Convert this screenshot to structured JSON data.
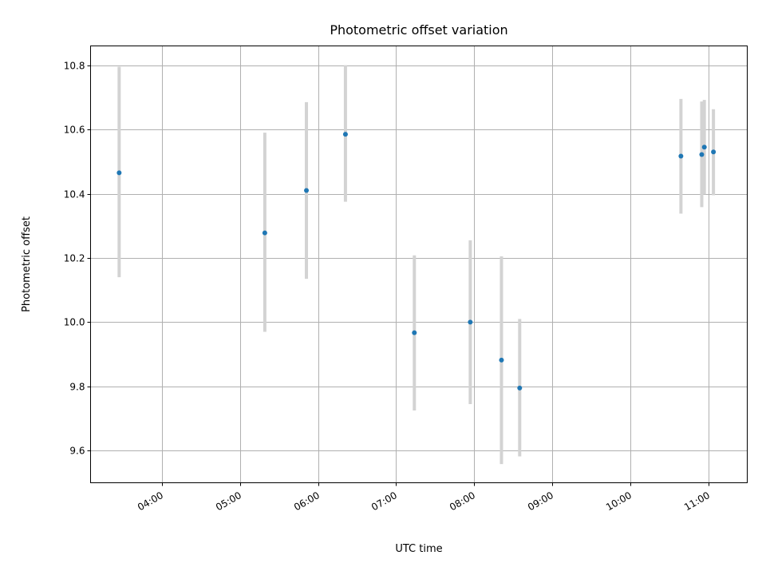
{
  "chart_data": {
    "type": "scatter",
    "title": "Photometric offset variation",
    "xlabel": "UTC time",
    "ylabel": "Photometric offset",
    "x_axis": {
      "scale": "time",
      "range": [
        "03:05",
        "11:30"
      ],
      "ticks": [
        "04:00",
        "05:00",
        "06:00",
        "07:00",
        "08:00",
        "09:00",
        "10:00",
        "11:00"
      ]
    },
    "y_axis": {
      "range": [
        9.5,
        10.86
      ],
      "ticks": [
        "9.6",
        "9.8",
        "10.0",
        "10.2",
        "10.4",
        "10.6",
        "10.8"
      ]
    },
    "grid": true,
    "series": [
      {
        "style": "points with vertical error bars",
        "marker_color": "#1f77b4",
        "errorbar_color": "#d3d3d3",
        "points": [
          {
            "x": "03:27",
            "y": 10.465,
            "y_low": 10.14,
            "y_high": 10.795
          },
          {
            "x": "05:19",
            "y": 10.278,
            "y_low": 9.97,
            "y_high": 10.59
          },
          {
            "x": "05:51",
            "y": 10.41,
            "y_low": 10.135,
            "y_high": 10.685
          },
          {
            "x": "06:21",
            "y": 10.585,
            "y_low": 10.375,
            "y_high": 10.8
          },
          {
            "x": "07:14",
            "y": 9.967,
            "y_low": 9.725,
            "y_high": 10.208
          },
          {
            "x": "07:57",
            "y": 10.0,
            "y_low": 9.745,
            "y_high": 10.255
          },
          {
            "x": "08:21",
            "y": 9.882,
            "y_low": 9.558,
            "y_high": 10.205
          },
          {
            "x": "08:35",
            "y": 9.795,
            "y_low": 9.582,
            "y_high": 10.01
          },
          {
            "x": "10:39",
            "y": 10.517,
            "y_low": 10.338,
            "y_high": 10.695
          },
          {
            "x": "10:55",
            "y": 10.522,
            "y_low": 10.358,
            "y_high": 10.687
          },
          {
            "x": "10:57",
            "y": 10.545,
            "y_low": 10.398,
            "y_high": 10.692
          },
          {
            "x": "11:04",
            "y": 10.53,
            "y_low": 10.395,
            "y_high": 10.663
          }
        ]
      }
    ]
  }
}
